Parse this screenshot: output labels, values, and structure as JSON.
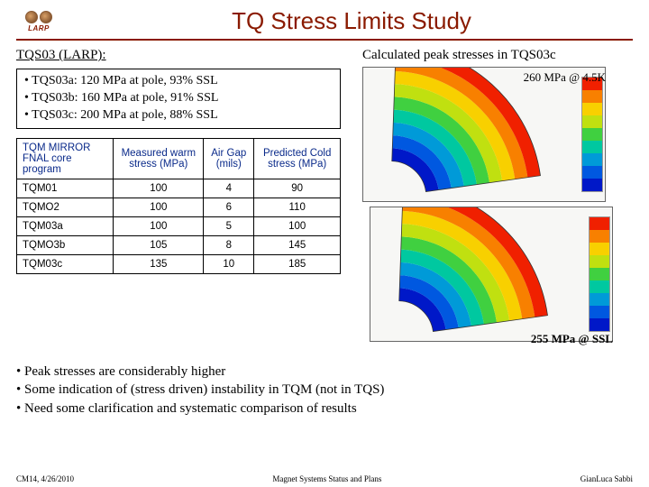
{
  "header": {
    "logo_label": "LARP",
    "title": "TQ Stress Limits Study"
  },
  "section": {
    "sec_title": "TQS03 (LARP):",
    "configs": [
      "TQS03a: 120 MPa at pole, 93% SSL",
      "TQS03b: 160 MPa at pole, 91% SSL",
      "TQS03c: 200 MPa at pole, 88% SSL"
    ]
  },
  "table": {
    "columns": [
      "TQM MIRROR FNAL core program",
      "Measured warm stress (MPa)",
      "Air Gap (mils)",
      "Predicted Cold stress (MPa)"
    ],
    "rows": [
      [
        "TQM01",
        "100",
        "4",
        "90"
      ],
      [
        "TQMO2",
        "100",
        "6",
        "110"
      ],
      [
        "TQM03a",
        "100",
        "5",
        "100"
      ],
      [
        "TQMO3b",
        "105",
        "8",
        "145"
      ],
      [
        "TQM03c",
        "135",
        "10",
        "185"
      ]
    ],
    "header_color": "#0a2a8a",
    "border_color": "#000000"
  },
  "right": {
    "peak_title": "Calculated peak stresses in TQS03c",
    "annot_top": "260 MPa @ 4.5K",
    "annot_bot": "255 MPa @ SSL",
    "tail_text": "255 MPa @ SSL",
    "sim_colors": [
      "#0018c8",
      "#0058e0",
      "#009ad8",
      "#00c8a0",
      "#40d040",
      "#c0e010",
      "#f8d000",
      "#f88000",
      "#f02000"
    ],
    "background_color": "#f7f7f5"
  },
  "conclusions": [
    "Peak stresses are considerably higher",
    "Some indication of (stress driven) instability in TQM (not in TQS)",
    "Need some clarification and systematic comparison of results"
  ],
  "footer": {
    "left": "CM14, 4/26/2010",
    "center": "Magnet Systems Status and Plans",
    "right": "GianLuca Sabbi"
  }
}
